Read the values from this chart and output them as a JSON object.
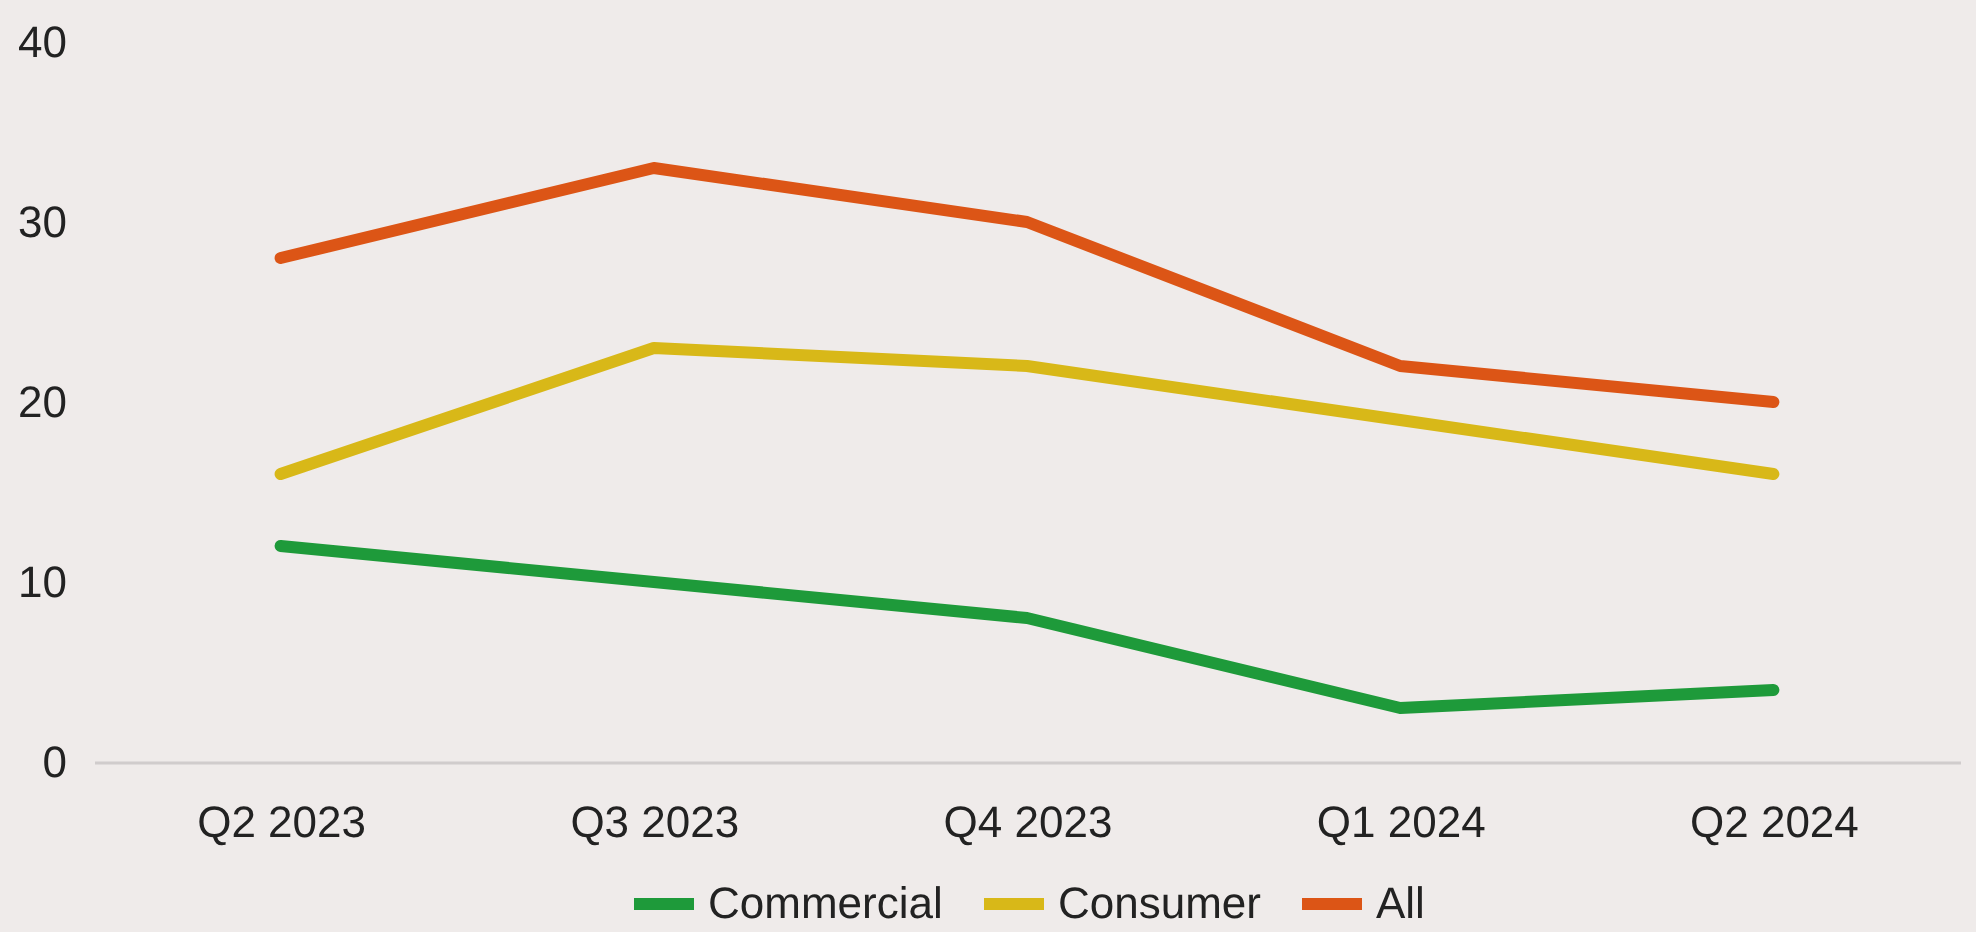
{
  "chart_data": {
    "type": "line",
    "categories": [
      "Q2 2023",
      "Q3 2023",
      "Q4 2023",
      "Q1 2024",
      "Q2 2024"
    ],
    "series": [
      {
        "name": "Commercial",
        "color": "#1e9a3a",
        "values": [
          12,
          10,
          8,
          3,
          4
        ]
      },
      {
        "name": "Consumer",
        "color": "#d8b818",
        "values": [
          16,
          23,
          22,
          19,
          16
        ]
      },
      {
        "name": "All",
        "color": "#dc5516",
        "values": [
          28,
          33,
          30,
          22,
          20
        ]
      }
    ],
    "ylim": [
      0,
      40
    ],
    "yticks": [
      0,
      10,
      20,
      30,
      40
    ],
    "legend": "bottom",
    "line_style": "solid"
  }
}
